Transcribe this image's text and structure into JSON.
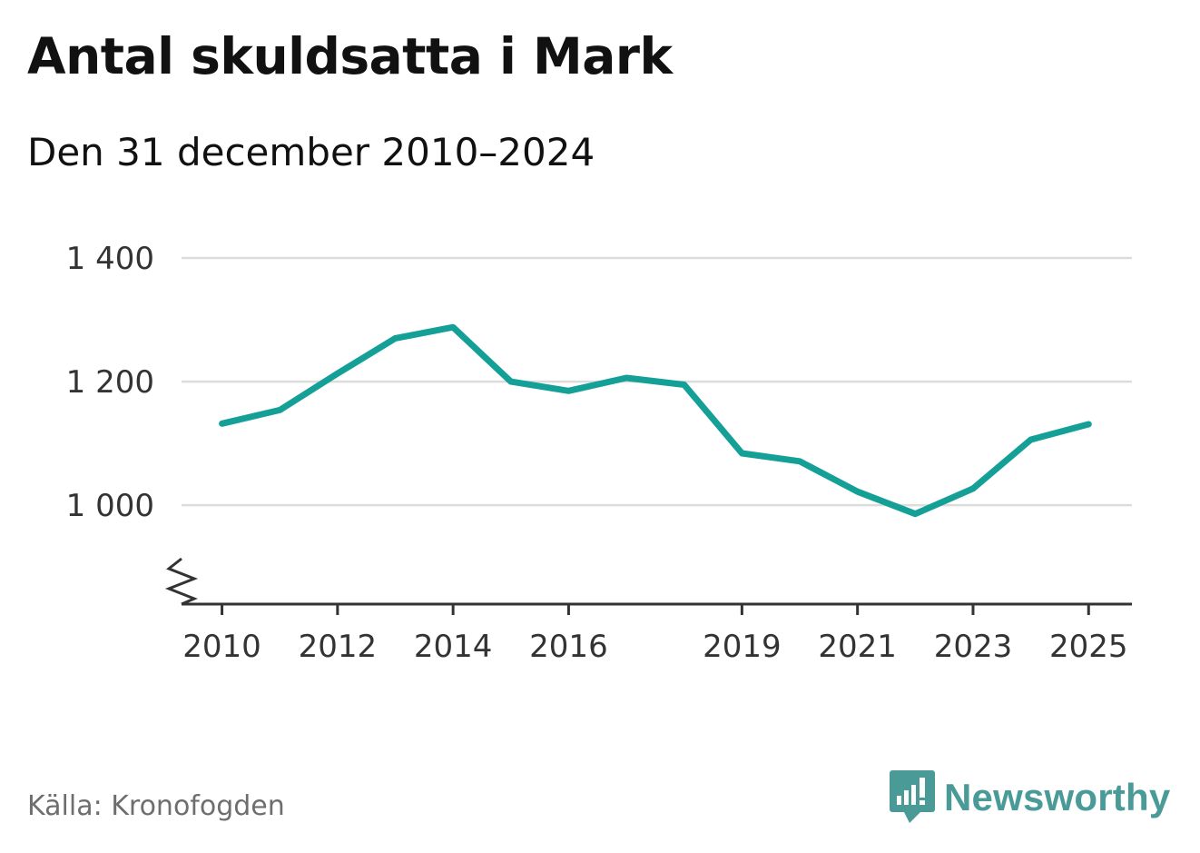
{
  "title": "Antal skuldsatta i Mark",
  "subtitle": "Den 31 december 2010–2024",
  "source": "Källa: Kronofogden",
  "brand": {
    "name": "Newsworthy",
    "icon": "newsworthy-logo-icon",
    "color": "#4a9b98"
  },
  "chart_data": {
    "type": "line",
    "title": "Antal skuldsatta i Mark",
    "xlabel": "",
    "ylabel": "",
    "x": [
      2010,
      2011,
      2012,
      2013,
      2014,
      2015,
      2016,
      2017,
      2018,
      2019,
      2020,
      2021,
      2022,
      2023,
      2024,
      2025
    ],
    "series": [
      {
        "name": "Antal skuldsatta",
        "color": "#14a096",
        "values": [
          1132,
          1154,
          1213,
          1270,
          1288,
          1200,
          1185,
          1206,
          1195,
          1084,
          1071,
          1022,
          986,
          1027,
          1106,
          1131
        ]
      }
    ],
    "xticks": [
      2010,
      2012,
      2014,
      2016,
      2019,
      2021,
      2023,
      2025
    ],
    "xtick_labels": [
      "2010",
      "2012",
      "2014",
      "2016",
      "2019",
      "2021",
      "2023",
      "2025"
    ],
    "yticks": [
      1000,
      1200,
      1400
    ],
    "ytick_labels": [
      "1 000",
      "1 200",
      "1 400"
    ],
    "xlim": [
      2009.3,
      2025.75
    ],
    "ylim": [
      840,
      1400
    ],
    "grid": true,
    "axis_break": true
  }
}
